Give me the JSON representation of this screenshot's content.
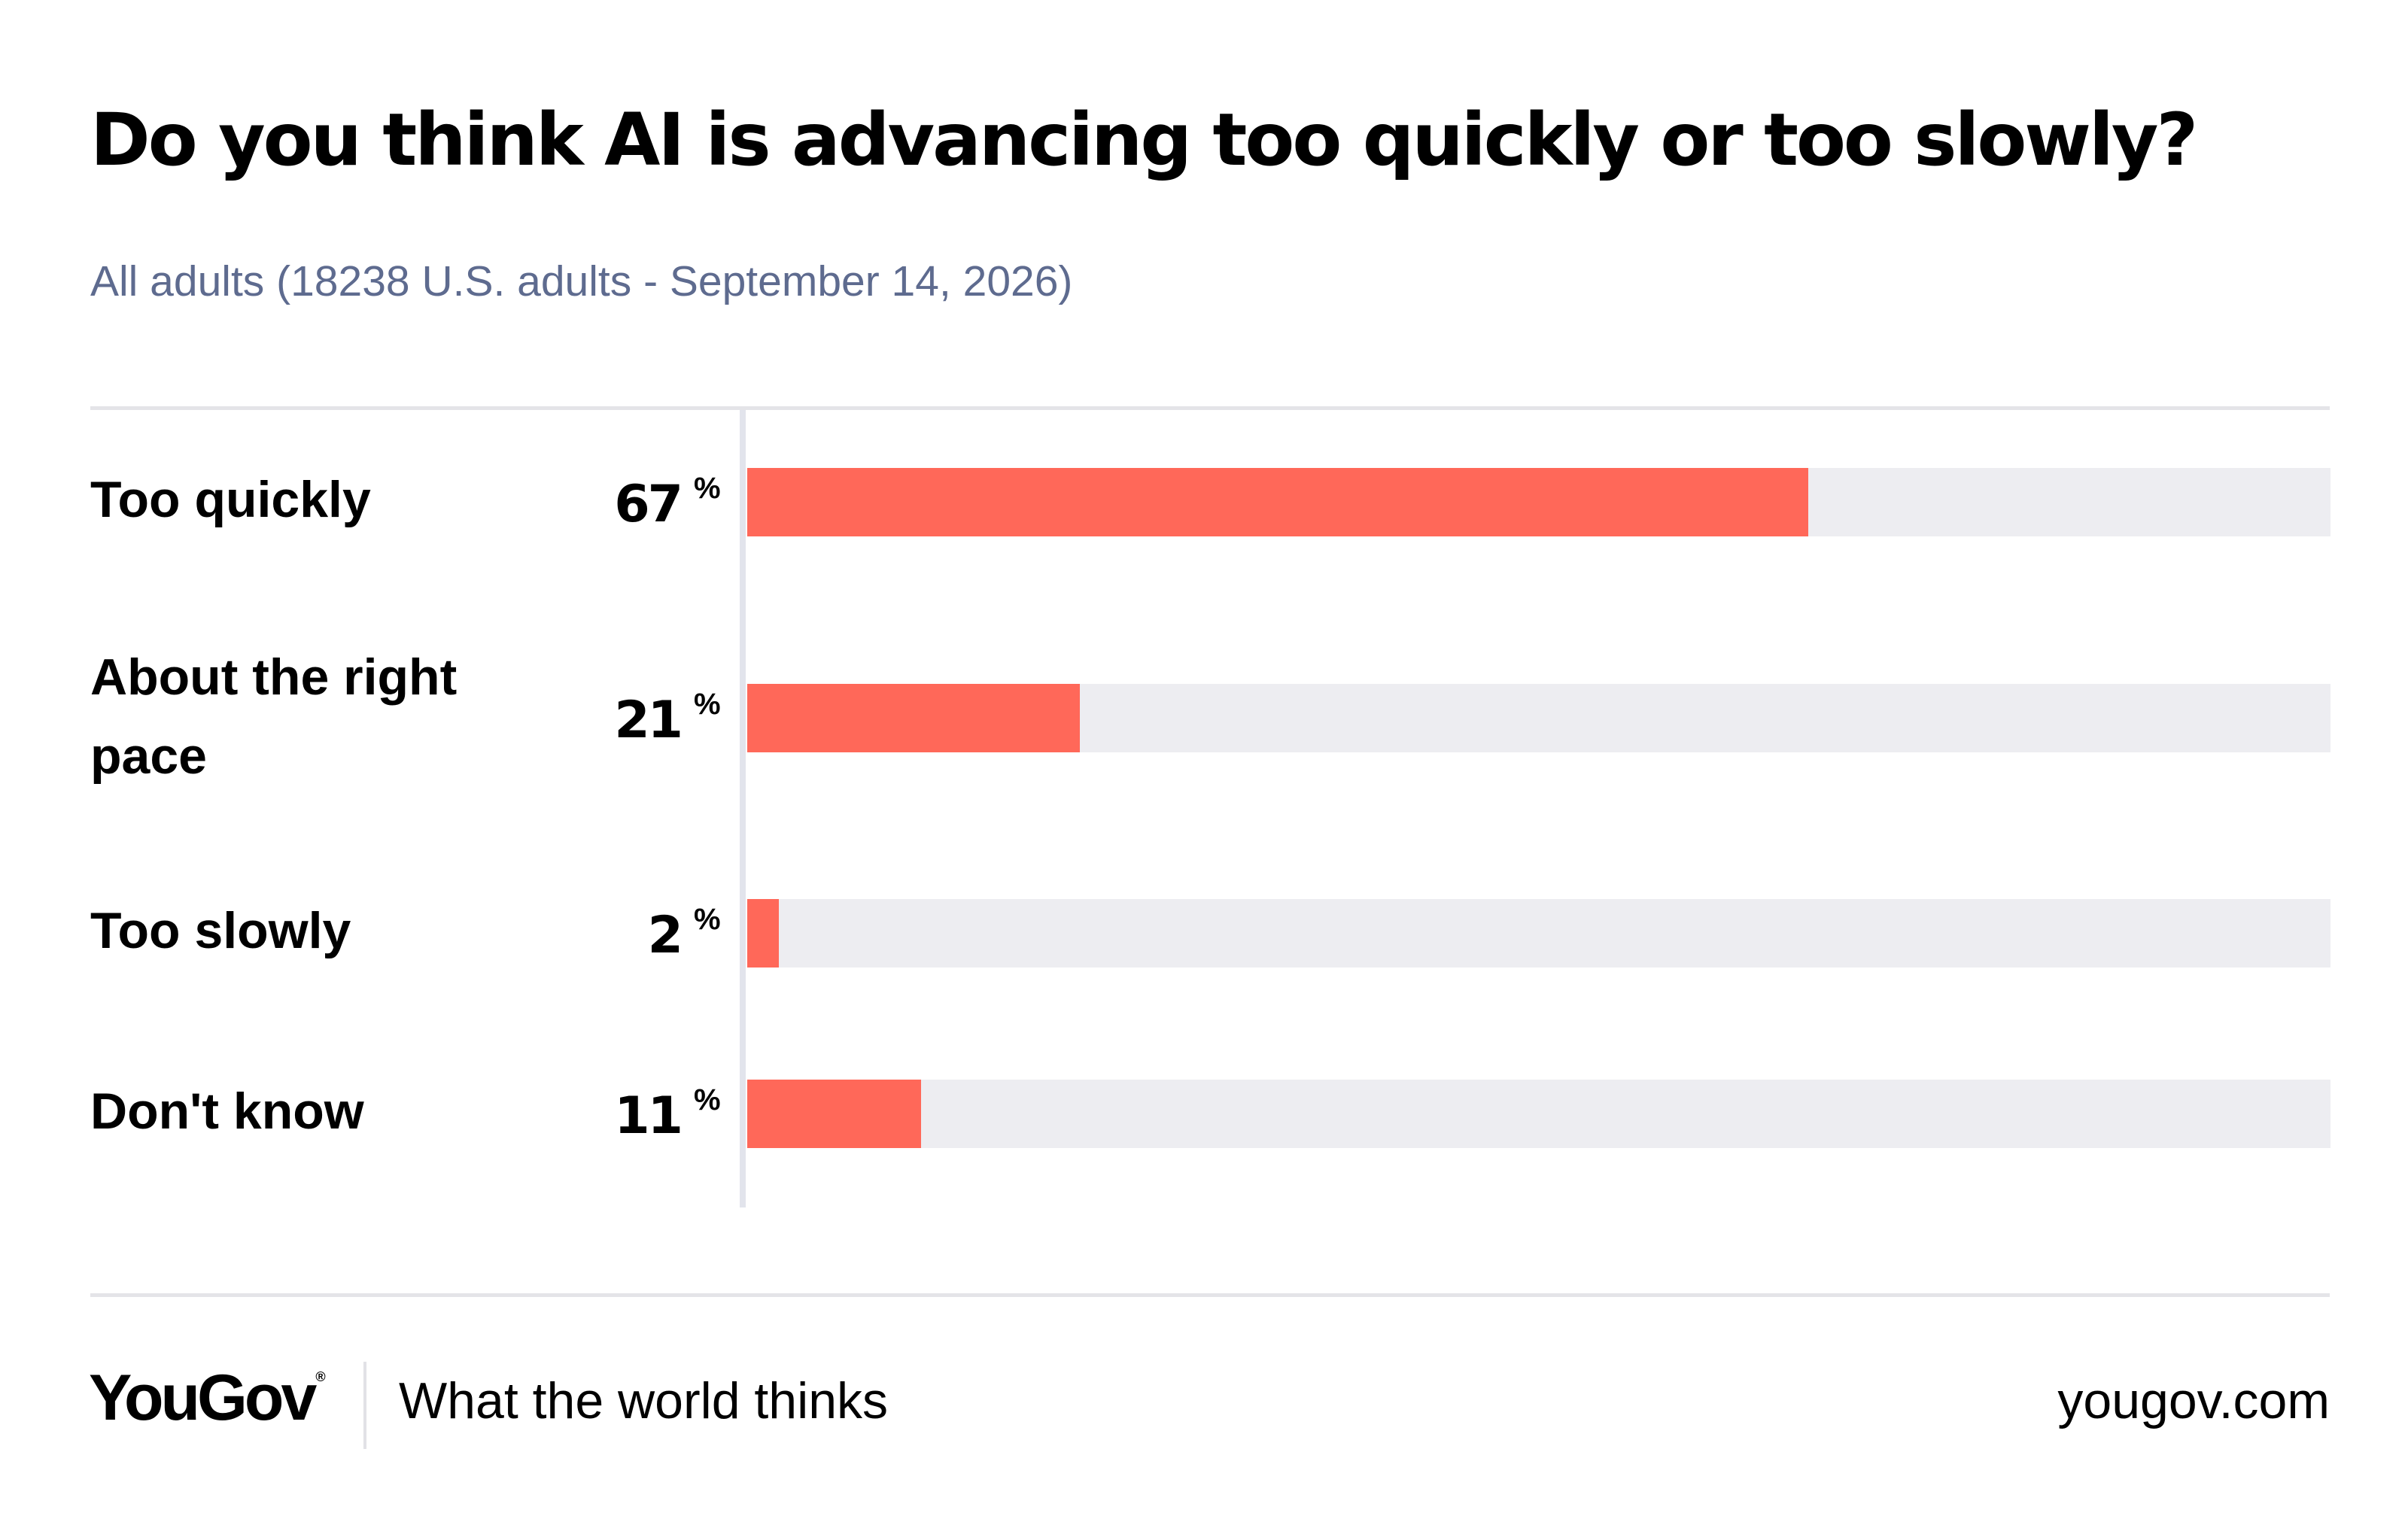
{
  "chart_data": {
    "type": "bar",
    "title": "Do you think AI is advancing too quickly or too slowly?",
    "subtitle": "All adults (18238 U.S. adults - September 14, 2026)",
    "categories": [
      "Too quickly",
      "About the right pace",
      "Too slowly",
      "Don't know"
    ],
    "values": [
      67,
      21,
      2,
      11
    ],
    "unit": "%",
    "xlim": [
      0,
      100
    ],
    "orientation": "horizontal",
    "bar_color": "#ff6859",
    "track_color": "#ededf1"
  },
  "footer": {
    "logo": "YouGov",
    "logo_mark": "®",
    "tagline": "What the world thinks",
    "site": "yougov.com"
  },
  "colors": {
    "subtitle": "#5e6b8f",
    "bar": "#ff6859",
    "track": "#ededf1"
  }
}
